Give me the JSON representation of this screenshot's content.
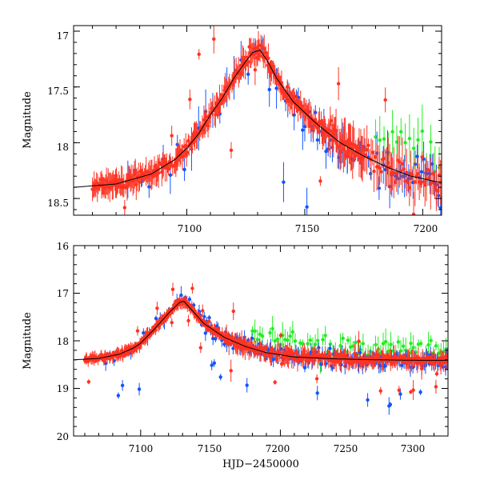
{
  "chart_data": [
    {
      "type": "scatter",
      "panel": "top",
      "title": "",
      "xlabel": "",
      "ylabel": "Magnitude",
      "xlim": [
        7052,
        7208
      ],
      "ylim": [
        18.65,
        16.95
      ],
      "y_inverted": true,
      "xticks": [
        7100,
        7150,
        7200
      ],
      "xtick_labels": [
        "7100",
        "7150",
        "7200"
      ],
      "yticks": [
        17,
        17.5,
        18,
        18.5
      ],
      "ytick_labels": [
        "17",
        "17.5",
        "18",
        "18.5"
      ],
      "series": [
        {
          "name": "red",
          "color": "#ff3322"
        },
        {
          "name": "blue",
          "color": "#1155ff"
        },
        {
          "name": "green",
          "color": "#22ee22"
        }
      ],
      "model_curve": {
        "x": [
          7052,
          7070,
          7085,
          7095,
          7100,
          7105,
          7110,
          7115,
          7120,
          7125,
          7128,
          7131,
          7134,
          7138,
          7145,
          7155,
          7165,
          7175,
          7185,
          7195,
          7208
        ],
        "y": [
          18.4,
          18.37,
          18.28,
          18.15,
          18.05,
          17.92,
          17.75,
          17.6,
          17.42,
          17.27,
          17.19,
          17.17,
          17.26,
          17.42,
          17.63,
          17.83,
          18.0,
          18.12,
          18.22,
          18.3,
          18.36
        ]
      }
    },
    {
      "type": "scatter",
      "panel": "bottom",
      "title": "",
      "xlabel": "HJD−2450000",
      "ylabel": "Magnitude",
      "xlim": [
        7052,
        7320
      ],
      "ylim": [
        20,
        16
      ],
      "y_inverted": true,
      "xticks": [
        7100,
        7150,
        7200,
        7250,
        7300
      ],
      "xtick_labels": [
        "7100",
        "7150",
        "7200",
        "7250",
        "7300"
      ],
      "yticks": [
        16,
        17,
        18,
        19,
        20
      ],
      "ytick_labels": [
        "16",
        "17",
        "18",
        "19",
        "20"
      ],
      "series": [
        {
          "name": "red",
          "color": "#ff3322"
        },
        {
          "name": "blue",
          "color": "#1155ff"
        },
        {
          "name": "green",
          "color": "#22ee22"
        }
      ],
      "model_curve": {
        "x": [
          7052,
          7070,
          7085,
          7095,
          7100,
          7110,
          7120,
          7128,
          7131,
          7135,
          7145,
          7160,
          7175,
          7190,
          7210,
          7240,
          7270,
          7300,
          7320
        ],
        "y": [
          18.4,
          18.37,
          18.28,
          18.15,
          18.05,
          17.75,
          17.42,
          17.19,
          17.17,
          17.3,
          17.63,
          17.93,
          18.12,
          18.25,
          18.34,
          18.38,
          18.4,
          18.41,
          18.41
        ]
      }
    }
  ]
}
